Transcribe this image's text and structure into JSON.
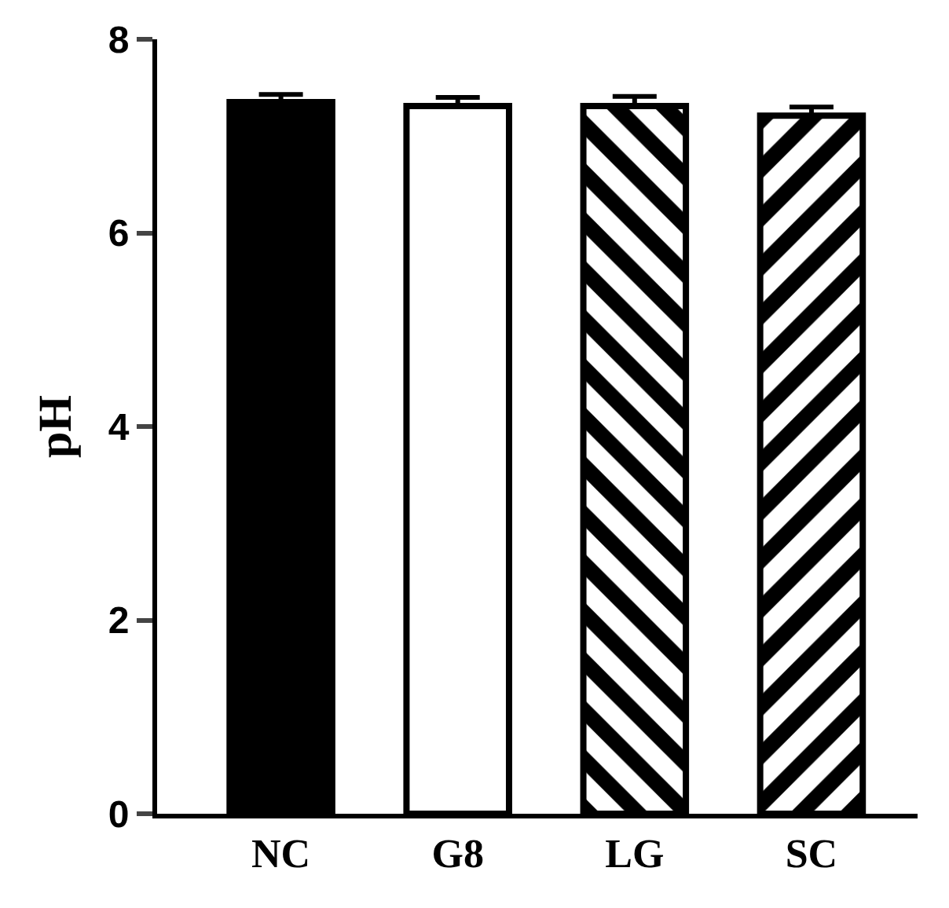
{
  "chart_data": {
    "type": "bar",
    "ylabel": "pH",
    "categories": [
      "NC",
      "G8",
      "LG",
      "SC"
    ],
    "values": [
      7.35,
      7.31,
      7.31,
      7.21
    ],
    "errors": [
      0.08,
      0.09,
      0.1,
      0.09
    ],
    "colors": [
      "#000000",
      "#ffffff",
      "#000000",
      "#000000"
    ],
    "ylim": [
      0,
      8
    ],
    "yticks": [
      0,
      2,
      4,
      6,
      8
    ]
  }
}
